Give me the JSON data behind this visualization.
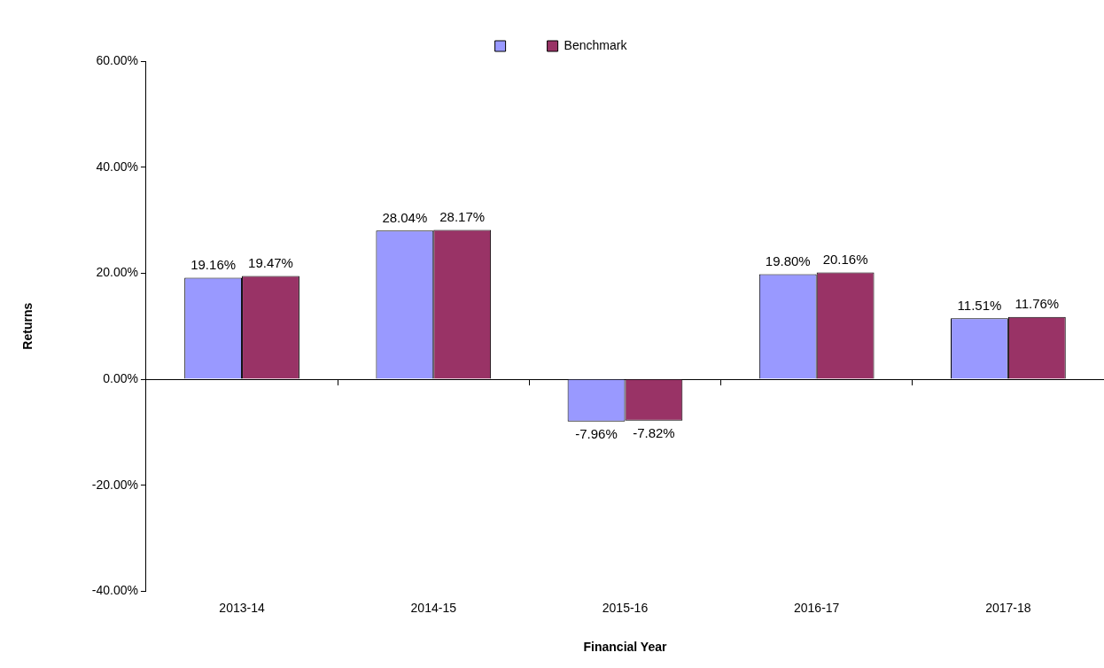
{
  "chart_data": {
    "type": "bar",
    "xlabel": "Financial Year",
    "ylabel": "Returns",
    "categories": [
      "2013-14",
      "2014-15",
      "2015-16",
      "2016-17",
      "2017-18"
    ],
    "series": [
      {
        "color": "#9999ff",
        "values": [
          19.16,
          28.04,
          -7.96,
          19.8,
          11.51
        ],
        "value_labels": [
          "19.16%",
          "28.04%",
          "-7.96%",
          "19.80%",
          "11.51%"
        ]
      },
      {
        "name": "Benchmark",
        "color": "#993366",
        "values": [
          19.47,
          28.17,
          -7.82,
          20.16,
          11.76
        ],
        "value_labels": [
          "19.47%",
          "28.17%",
          "-7.82%",
          "20.16%",
          "11.76%"
        ]
      }
    ],
    "ylim": [
      -40,
      60
    ],
    "yticks": [
      {
        "value": -40,
        "label": "-40.00%"
      },
      {
        "value": -20,
        "label": "-20.00%"
      },
      {
        "value": 0,
        "label": "0.00%"
      },
      {
        "value": 20,
        "label": "20.00%"
      },
      {
        "value": 40,
        "label": "40.00%"
      },
      {
        "value": 60,
        "label": "60.00%"
      }
    ],
    "legend": "top"
  }
}
